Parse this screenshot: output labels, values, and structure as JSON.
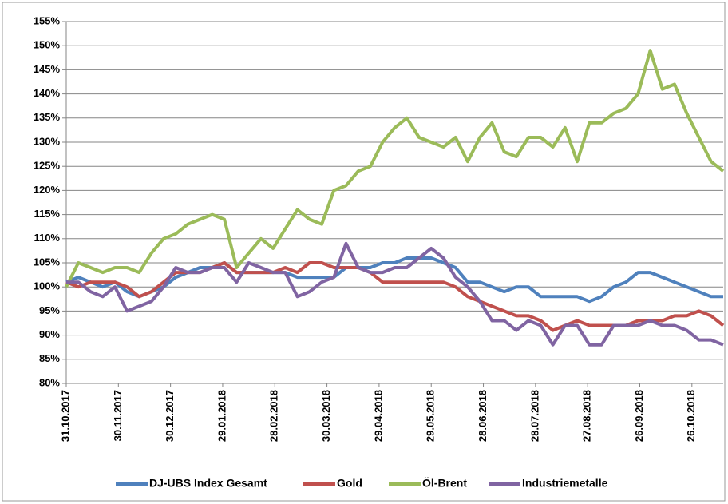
{
  "chart_data": {
    "type": "line",
    "x": [
      "31.10.2017",
      "07.11.2017",
      "14.11.2017",
      "21.11.2017",
      "28.11.2017",
      "05.12.2017",
      "12.12.2017",
      "19.12.2017",
      "26.12.2017",
      "02.01.2018",
      "09.01.2018",
      "16.01.2018",
      "23.01.2018",
      "30.01.2018",
      "06.02.2018",
      "13.02.2018",
      "20.02.2018",
      "27.02.2018",
      "06.03.2018",
      "13.03.2018",
      "20.03.2018",
      "27.03.2018",
      "03.04.2018",
      "10.04.2018",
      "17.04.2018",
      "24.04.2018",
      "01.05.2018",
      "08.05.2018",
      "15.05.2018",
      "22.05.2018",
      "29.05.2018",
      "05.06.2018",
      "12.06.2018",
      "19.06.2018",
      "26.06.2018",
      "03.07.2018",
      "10.07.2018",
      "17.07.2018",
      "24.07.2018",
      "31.07.2018",
      "07.08.2018",
      "14.08.2018",
      "21.08.2018",
      "28.08.2018",
      "04.09.2018",
      "11.09.2018",
      "18.09.2018",
      "25.09.2018",
      "02.10.2018",
      "09.10.2018",
      "16.10.2018",
      "23.10.2018",
      "30.10.2018",
      "06.11.2018",
      "13.11.2018"
    ],
    "series": [
      {
        "name": "DJ-UBS Index Gesamt",
        "color": "#4f81bd",
        "values": [
          101,
          102,
          101,
          100,
          101,
          99,
          98,
          99,
          100,
          102,
          103,
          104,
          104,
          105,
          103,
          103,
          103,
          103,
          103,
          102,
          102,
          102,
          102,
          104,
          104,
          104,
          105,
          105,
          106,
          106,
          106,
          105,
          104,
          101,
          101,
          100,
          99,
          100,
          100,
          98,
          98,
          98,
          98,
          97,
          98,
          100,
          101,
          103,
          103,
          102,
          101,
          100,
          99,
          98,
          98
        ]
      },
      {
        "name": "Gold",
        "color": "#c0504d",
        "values": [
          101,
          100,
          101,
          101,
          101,
          100,
          98,
          99,
          101,
          103,
          103,
          103,
          104,
          105,
          103,
          103,
          103,
          103,
          104,
          103,
          105,
          105,
          104,
          104,
          104,
          103,
          101,
          101,
          101,
          101,
          101,
          101,
          100,
          98,
          97,
          96,
          95,
          94,
          94,
          93,
          91,
          92,
          93,
          92,
          92,
          92,
          92,
          93,
          93,
          93,
          94,
          94,
          95,
          94,
          92
        ]
      },
      {
        "name": "Öl-Brent",
        "color": "#9bbb59",
        "values": [
          100,
          105,
          104,
          103,
          104,
          104,
          103,
          107,
          110,
          111,
          113,
          114,
          115,
          114,
          104,
          107,
          110,
          108,
          112,
          116,
          114,
          113,
          120,
          121,
          124,
          125,
          130,
          133,
          135,
          131,
          130,
          129,
          131,
          126,
          131,
          134,
          128,
          127,
          131,
          131,
          129,
          133,
          126,
          134,
          134,
          136,
          137,
          140,
          149,
          141,
          142,
          136,
          131,
          126,
          124
        ]
      },
      {
        "name": "Industriemetalle",
        "color": "#8064a2",
        "values": [
          101,
          101,
          99,
          98,
          100,
          95,
          96,
          97,
          100,
          104,
          103,
          103,
          104,
          104,
          101,
          105,
          104,
          103,
          103,
          98,
          99,
          101,
          102,
          109,
          104,
          103,
          103,
          104,
          104,
          106,
          108,
          106,
          102,
          100,
          97,
          93,
          93,
          91,
          93,
          92,
          88,
          92,
          92,
          88,
          88,
          92,
          92,
          92,
          93,
          92,
          92,
          91,
          89,
          89,
          88
        ]
      }
    ],
    "xlim": [
      "31.10.2017",
      "13.11.2018"
    ],
    "xticks": [
      "31.10.2017",
      "30.11.2017",
      "30.12.2017",
      "29.01.2018",
      "28.02.2018",
      "30.03.2018",
      "29.04.2018",
      "29.05.2018",
      "28.06.2018",
      "28.07.2018",
      "27.08.2018",
      "26.09.2018",
      "26.10.2018"
    ],
    "ylim": [
      80,
      155
    ],
    "yticks": [
      {
        "value": 80,
        "label": "80%"
      },
      {
        "value": 85,
        "label": "85%"
      },
      {
        "value": 90,
        "label": "90%"
      },
      {
        "value": 95,
        "label": "95%"
      },
      {
        "value": 100,
        "label": "100%"
      },
      {
        "value": 105,
        "label": "105%"
      },
      {
        "value": 110,
        "label": "110%"
      },
      {
        "value": 115,
        "label": "115%"
      },
      {
        "value": 120,
        "label": "120%"
      },
      {
        "value": 125,
        "label": "125%"
      },
      {
        "value": 130,
        "label": "130%"
      },
      {
        "value": 135,
        "label": "135%"
      },
      {
        "value": 140,
        "label": "140%"
      },
      {
        "value": 145,
        "label": "145%"
      },
      {
        "value": 150,
        "label": "150%"
      },
      {
        "value": 155,
        "label": "155%"
      }
    ],
    "grid": true
  }
}
